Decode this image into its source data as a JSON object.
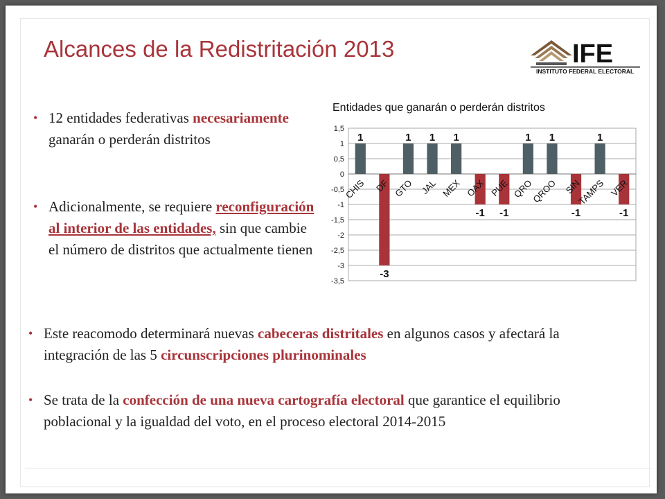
{
  "slide": {
    "title": "Alcances de la Redistritación 2013",
    "logo": {
      "name": "IFE",
      "subtitle": "INSTITUTO FEDERAL ELECTORAL"
    },
    "bullets_left": [
      {
        "parts": [
          {
            "text": "12 entidades federativas ",
            "style": "normal"
          },
          {
            "text": "necesariamente",
            "style": "hl"
          },
          {
            "text": " ganarán o perderán distritos",
            "style": "normal"
          }
        ]
      },
      {
        "parts": [
          {
            "text": "Adicionalmente, se requiere ",
            "style": "normal"
          },
          {
            "text": "reconfiguración al interior de las entidades,",
            "style": "hl-u"
          },
          {
            "text": " sin que cambie el número de distritos que actualmente tienen",
            "style": "normal"
          }
        ]
      }
    ],
    "bullets_bottom": [
      {
        "parts": [
          {
            "text": "Este reacomodo determinará nuevas ",
            "style": "normal"
          },
          {
            "text": "cabeceras distritales",
            "style": "hl"
          },
          {
            "text": " en algunos casos y afectará la integración de las 5 ",
            "style": "normal"
          },
          {
            "text": "circunscripciones plurinominales",
            "style": "hl"
          }
        ]
      },
      {
        "parts": [
          {
            "text": "Se trata de la ",
            "style": "normal"
          },
          {
            "text": "confección de una nueva cartografía electoral",
            "style": "hl"
          },
          {
            "text": " que garantice el equilibrio poblacional y la igualdad del voto, en el proceso electoral 2014-2015",
            "style": "normal"
          }
        ]
      }
    ],
    "colors": {
      "accent": "#a8343a",
      "positive_bar": "#4f5f66",
      "negative_bar": "#a8343a"
    }
  },
  "chart_data": {
    "type": "bar",
    "title": "Entidades que ganarán o perderán distritos",
    "categories": [
      "CHIS",
      "DF",
      "GTO",
      "JAL",
      "MEX",
      "OAX",
      "PUE",
      "QRO",
      "QROO",
      "SIN",
      "TAMPS",
      "VER"
    ],
    "values": [
      1,
      -3,
      1,
      1,
      1,
      -1,
      -1,
      1,
      1,
      -1,
      1,
      -1
    ],
    "value_labels": [
      "1",
      "-3",
      "1",
      "1",
      "1",
      "-1",
      "-1",
      "1",
      "1",
      "-1",
      "1",
      "-1"
    ],
    "yticks": [
      "1,5",
      "1",
      "0,5",
      "0",
      "-0,5",
      "-1",
      "-1,5",
      "-2",
      "-2,5",
      "-3",
      "-3,5"
    ],
    "ylim": [
      -3.5,
      1.5
    ],
    "grid": true,
    "xlabel": "",
    "ylabel": ""
  }
}
